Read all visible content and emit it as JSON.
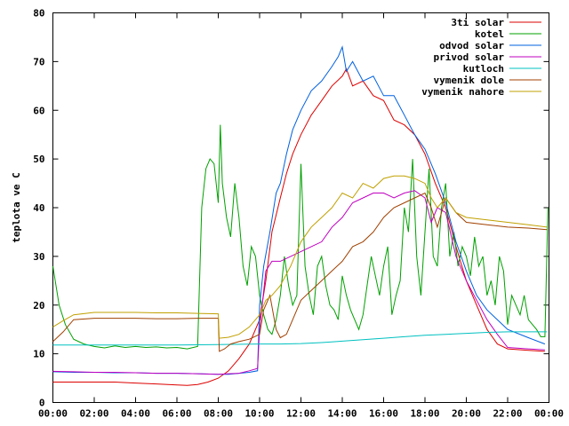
{
  "chart_data": {
    "type": "line",
    "title": "",
    "xlabel": "",
    "ylabel": "teplota ve C",
    "x_ticks": [
      "00:00",
      "02:00",
      "04:00",
      "06:00",
      "08:00",
      "10:00",
      "12:00",
      "14:00",
      "16:00",
      "18:00",
      "20:00",
      "22:00",
      "00:00"
    ],
    "xlim": [
      0,
      24
    ],
    "ylim": [
      0,
      80
    ],
    "y_ticks": [
      0,
      10,
      20,
      30,
      40,
      50,
      60,
      70,
      80
    ],
    "grid": false,
    "legend_position": "top-right",
    "series": [
      {
        "name": "3ti solar",
        "color": "#dd0000",
        "x": [
          0,
          1,
          2,
          3,
          4,
          5,
          6,
          6.5,
          7,
          7.5,
          8,
          8.5,
          9,
          9.5,
          10,
          10.3,
          10.6,
          11,
          11.3,
          11.6,
          12,
          12.5,
          13,
          13.5,
          14,
          14.2,
          14.5,
          15,
          15.5,
          16,
          16.5,
          17,
          17.5,
          18,
          18.5,
          19,
          19.5,
          20,
          20.5,
          21,
          21.5,
          22,
          23,
          23.8
        ],
        "y": [
          4.2,
          4.2,
          4.2,
          4.2,
          4,
          3.8,
          3.6,
          3.5,
          3.7,
          4.2,
          5,
          6.5,
          9,
          12,
          17,
          25,
          35,
          42,
          47,
          51,
          55,
          59,
          62,
          65,
          67,
          68.5,
          65,
          66,
          63,
          62,
          58,
          57,
          55,
          51,
          45,
          40,
          32,
          25,
          20,
          15,
          12,
          11,
          10.7,
          10.5
        ]
      },
      {
        "name": "kotel",
        "color": "#00a000",
        "x": [
          0,
          0.3,
          0.6,
          1,
          1.5,
          2,
          2.5,
          3,
          3.5,
          4,
          4.5,
          5,
          5.5,
          6,
          6.5,
          7,
          7.2,
          7.4,
          7.6,
          7.8,
          8,
          8.1,
          8.2,
          8.4,
          8.6,
          8.8,
          9,
          9.2,
          9.4,
          9.6,
          9.8,
          10,
          10.2,
          10.4,
          10.6,
          10.8,
          11,
          11.2,
          11.4,
          11.6,
          11.8,
          12,
          12.2,
          12.4,
          12.6,
          12.8,
          13,
          13.2,
          13.4,
          13.6,
          13.8,
          14,
          14.2,
          14.4,
          14.6,
          14.8,
          15,
          15.2,
          15.4,
          15.6,
          15.8,
          16,
          16.2,
          16.4,
          16.6,
          16.8,
          17,
          17.2,
          17.4,
          17.6,
          17.8,
          18,
          18.2,
          18.4,
          18.6,
          18.8,
          19,
          19.2,
          19.4,
          19.6,
          19.8,
          20,
          20.2,
          20.4,
          20.6,
          20.8,
          21,
          21.2,
          21.4,
          21.6,
          21.8,
          22,
          22.2,
          22.4,
          22.6,
          22.8,
          23,
          23.2,
          23.4,
          23.6,
          23.8,
          23.95
        ],
        "y": [
          28,
          20,
          16,
          13,
          12,
          11.5,
          11.2,
          11.6,
          11.3,
          11.5,
          11.3,
          11.4,
          11.2,
          11.3,
          11,
          11.5,
          40,
          48,
          50,
          49,
          41,
          57,
          45,
          38,
          34,
          45,
          38,
          28,
          24,
          32,
          30,
          22,
          18,
          15,
          14,
          17,
          22,
          30,
          24,
          20,
          22,
          49,
          28,
          22,
          18,
          28,
          30,
          24,
          20,
          19,
          17,
          26,
          22,
          19,
          17,
          15,
          18,
          24,
          30,
          26,
          22,
          28,
          32,
          18,
          22,
          25,
          40,
          35,
          50,
          30,
          22,
          35,
          48,
          30,
          28,
          40,
          45,
          30,
          35,
          28,
          32,
          30,
          26,
          34,
          28,
          30,
          22,
          25,
          20,
          30,
          27,
          16,
          22,
          20,
          18,
          22,
          17,
          16,
          15,
          13.5,
          13.5,
          40
        ]
      },
      {
        "name": "odvod solar",
        "color": "#0060e0",
        "x": [
          0,
          1,
          2,
          3,
          4,
          5,
          6,
          7,
          8,
          8.5,
          9,
          9.5,
          9.9,
          10,
          10.2,
          10.5,
          10.8,
          11,
          11.3,
          11.6,
          12,
          12.5,
          13,
          13.5,
          13.8,
          14,
          14.2,
          14.5,
          15,
          15.5,
          16,
          16.5,
          17,
          17.5,
          18,
          18.5,
          19,
          19.5,
          20,
          20.5,
          21,
          21.5,
          22,
          23,
          23.8
        ],
        "y": [
          6.3,
          6.2,
          6.2,
          6.1,
          6.1,
          6,
          6,
          5.9,
          5.8,
          5.8,
          6,
          6.2,
          6.5,
          20,
          28,
          35,
          43,
          45,
          51,
          56,
          60,
          64,
          66,
          69,
          71,
          73,
          68,
          70,
          66,
          67,
          63,
          63,
          59,
          55,
          52,
          47,
          41,
          33,
          27,
          22,
          19,
          17,
          15,
          13.3,
          12
        ]
      },
      {
        "name": "privod solar",
        "color": "#c000c0",
        "x": [
          0,
          1,
          2,
          3,
          4,
          5,
          6,
          7,
          8,
          9,
          9.5,
          9.9,
          10,
          10.3,
          10.6,
          11,
          11.5,
          12,
          12.5,
          13,
          13.5,
          14,
          14.5,
          15,
          15.5,
          16,
          16.5,
          17,
          17.5,
          18,
          18.3,
          18.6,
          19,
          19.5,
          20,
          20.5,
          21,
          21.5,
          22,
          23,
          23.8
        ],
        "y": [
          6.4,
          6.3,
          6.2,
          6.2,
          6.1,
          6,
          6,
          5.9,
          5.8,
          6,
          6.5,
          7,
          15,
          27,
          29,
          29,
          30,
          31,
          32,
          33,
          36,
          38,
          41,
          42,
          43,
          43,
          42,
          43,
          43.5,
          42,
          37,
          40,
          39,
          30,
          25,
          21,
          17,
          14,
          11.3,
          11,
          10.8
        ]
      },
      {
        "name": "kutloch",
        "color": "#00c0c0",
        "x": [
          0,
          2,
          4,
          6,
          8,
          10,
          11,
          12,
          13,
          14,
          15,
          16,
          17,
          18,
          19,
          20,
          21,
          22,
          23,
          23.9
        ],
        "y": [
          11.8,
          11.8,
          11.8,
          11.8,
          11.9,
          12,
          12,
          12.1,
          12.3,
          12.6,
          12.9,
          13.2,
          13.5,
          13.8,
          14,
          14.2,
          14.4,
          14.5,
          14.5,
          14.5
        ]
      },
      {
        "name": "vymenik dole",
        "color": "#a04000",
        "x": [
          0,
          0.5,
          1,
          2,
          3,
          4,
          5,
          6,
          7,
          8,
          8.05,
          8.3,
          8.6,
          9,
          9.5,
          10,
          10.2,
          10.5,
          10.8,
          11,
          11.3,
          11.6,
          12,
          12.5,
          13,
          13.5,
          14,
          14.5,
          15,
          15.5,
          16,
          16.5,
          17,
          17.5,
          18,
          18.3,
          18.6,
          19,
          19.5,
          20,
          21,
          22,
          23,
          23.9
        ],
        "y": [
          12.5,
          14.5,
          17,
          17.3,
          17.3,
          17.3,
          17.2,
          17.2,
          17.3,
          17.3,
          10.5,
          11,
          12,
          12.5,
          13,
          14,
          19,
          22,
          15,
          13.3,
          14,
          17,
          21,
          23,
          25,
          27,
          29,
          32,
          33,
          35,
          38,
          40,
          41,
          42,
          43,
          40,
          36,
          42,
          39,
          37,
          36.5,
          36,
          35.8,
          35.5
        ]
      },
      {
        "name": "vymenik nahore",
        "color": "#c0a000",
        "x": [
          0,
          0.5,
          1,
          2,
          3,
          4,
          5,
          6,
          7,
          8,
          8.05,
          8.5,
          9,
          9.5,
          10,
          10.3,
          10.6,
          11,
          11.5,
          12,
          12.5,
          13,
          13.5,
          14,
          14.5,
          15,
          15.5,
          16,
          16.5,
          17,
          17.5,
          18,
          18.3,
          18.6,
          19,
          19.5,
          20,
          21,
          22,
          23,
          23.9
        ],
        "y": [
          15.5,
          16.8,
          18,
          18.5,
          18.5,
          18.5,
          18.4,
          18.4,
          18.3,
          18.2,
          13.2,
          13.4,
          14,
          15.5,
          18,
          21,
          22,
          24,
          28,
          33,
          36,
          38,
          40,
          43,
          42,
          45,
          44,
          46,
          46.5,
          46.5,
          46,
          45,
          42,
          40,
          42,
          39,
          38,
          37.5,
          37,
          36.5,
          36
        ]
      }
    ]
  }
}
